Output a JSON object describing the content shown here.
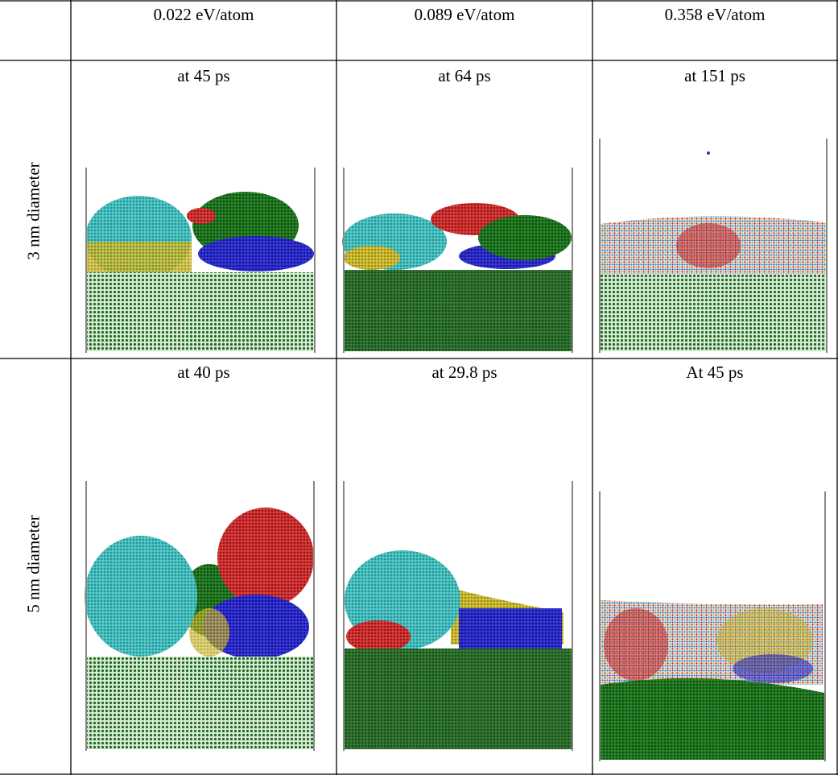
{
  "table": {
    "header": [
      "0.022 eV/atom",
      "0.089 eV/atom",
      "0.358 eV/atom"
    ],
    "rows": [
      {
        "label": "3 nm diameter",
        "cells": [
          "at 45 ps",
          "at 64 ps",
          "at 151 ps"
        ]
      },
      {
        "label": "5 nm diameter",
        "cells": [
          "at 40 ps",
          "at 29.8 ps",
          "At 45 ps"
        ]
      }
    ]
  }
}
